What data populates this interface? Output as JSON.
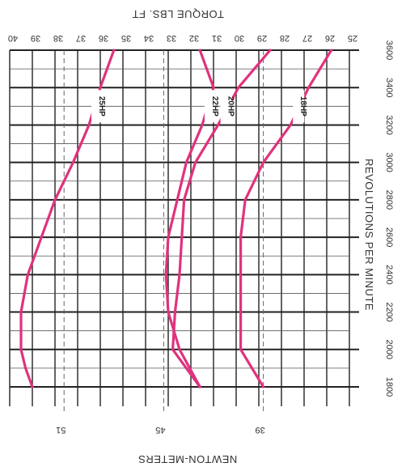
{
  "chart_data": {
    "type": "line",
    "title": "",
    "xlabel": "REVOLUTIONS PER MINUTE",
    "ylabel_top": "TORQUE LBS. FT",
    "ylabel_bottom": "NEWTON-METERS",
    "xlim": [
      1800,
      3600
    ],
    "ylim": [
      25,
      40
    ],
    "x_ticks": [
      1800,
      2000,
      2200,
      2400,
      2600,
      2800,
      3000,
      3200,
      3400,
      3600
    ],
    "x_tick_labels": [
      "1800",
      "2000",
      "2200",
      "2400",
      "2600",
      "2800",
      "3000",
      "3200",
      "3400",
      "3600"
    ],
    "y_ticks": [
      25,
      26,
      27,
      28,
      29,
      30,
      31,
      32,
      33,
      34,
      35,
      36,
      37,
      38,
      39,
      40
    ],
    "y_tick_labels": [
      "25",
      "26",
      "27",
      "28",
      "29",
      "30",
      "31",
      "32",
      "33",
      "34",
      "35",
      "36",
      "37",
      "38",
      "39",
      "40"
    ],
    "newton_meter_ticks": [
      {
        "label": "51",
        "lbft": 37.6
      },
      {
        "label": "45",
        "lbft": 33.2
      },
      {
        "label": "39",
        "lbft": 28.8
      }
    ],
    "grid": true,
    "line_color": "#e0327e",
    "series": [
      {
        "name": "25HP",
        "x": [
          1800,
          1900,
          2000,
          2200,
          2400,
          2600,
          2800,
          3000,
          3200,
          3400,
          3600
        ],
        "y": [
          39.0,
          39.3,
          39.5,
          39.5,
          39.2,
          38.6,
          38.0,
          37.2,
          36.5,
          36.0,
          35.4
        ]
      },
      {
        "name": "22HP",
        "x": [
          1800,
          2000,
          2200,
          2400,
          2600,
          2800,
          3000,
          3200,
          3400,
          3600
        ],
        "y": [
          31.6,
          32.5,
          33.0,
          33.1,
          33.0,
          32.6,
          32.2,
          31.5,
          31.0,
          31.6
        ]
      },
      {
        "name": "20HP",
        "x": [
          1800,
          2000,
          2200,
          2400,
          2600,
          2800,
          3000,
          3200,
          3400,
          3600
        ],
        "y": [
          31.6,
          32.8,
          32.7,
          32.5,
          32.4,
          32.3,
          31.8,
          30.8,
          29.9,
          28.5
        ]
      },
      {
        "name": "18HP",
        "x": [
          1800,
          2000,
          2200,
          2400,
          2600,
          2800,
          3000,
          3200,
          3400,
          3600
        ],
        "y": [
          28.8,
          29.8,
          29.8,
          29.8,
          29.8,
          29.6,
          28.8,
          27.6,
          26.8,
          25.8
        ]
      }
    ]
  }
}
